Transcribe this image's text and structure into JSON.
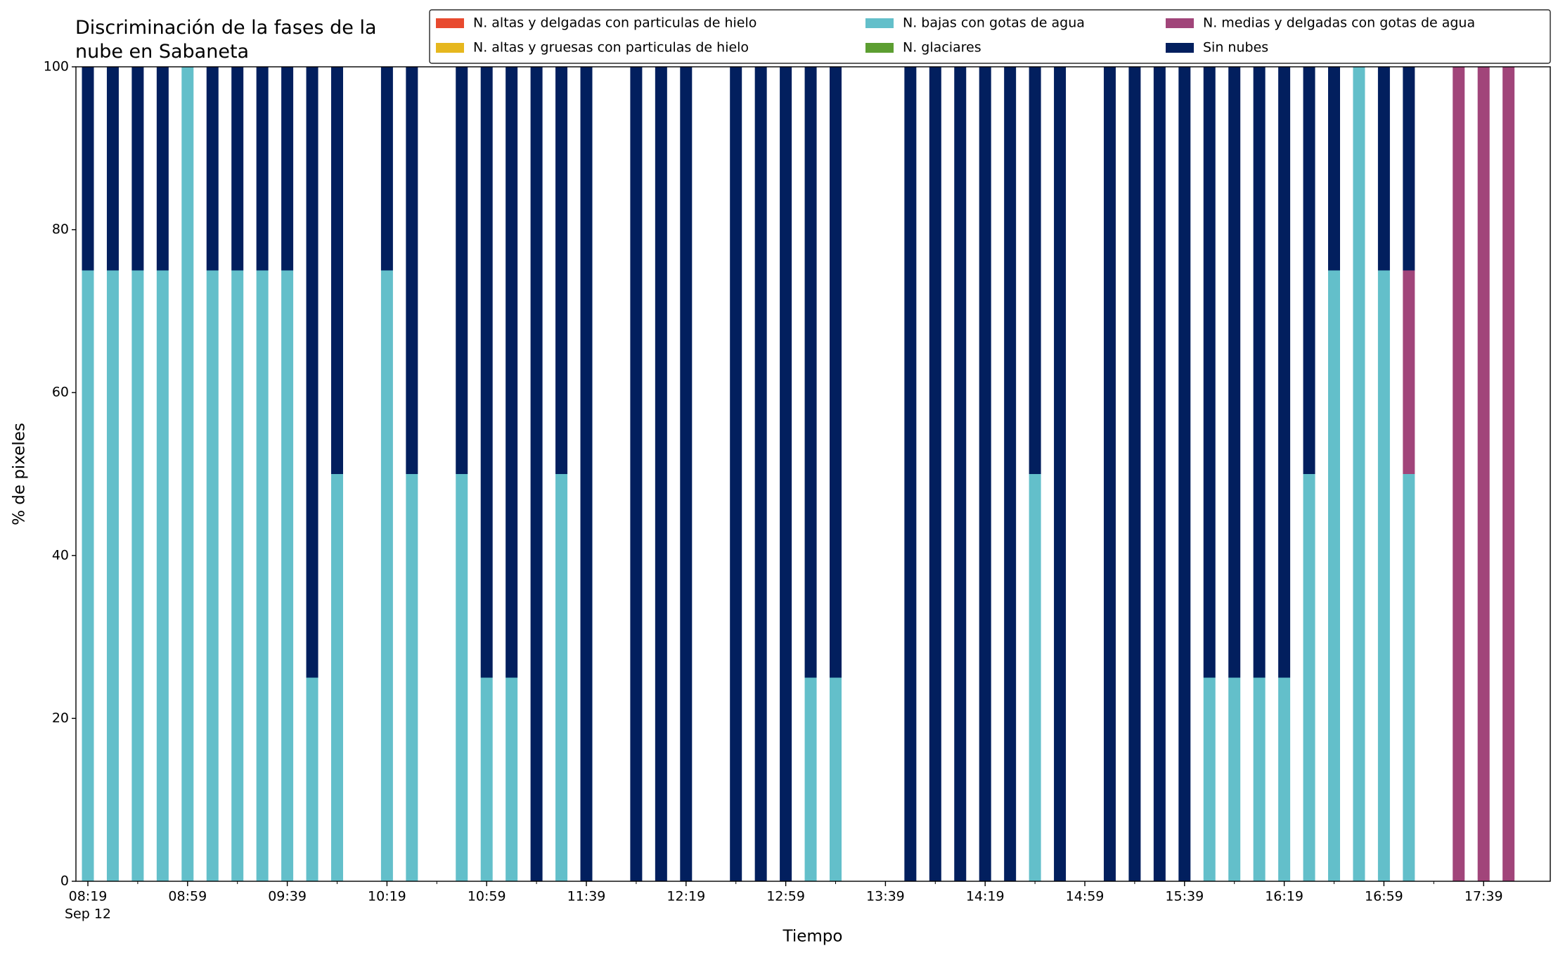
{
  "chart_data": {
    "type": "bar",
    "stacked": true,
    "title": "Discriminación de la fases de la\nnube en Sabaneta",
    "xlabel": "Tiempo",
    "ylabel": "% de pixeles",
    "x_sublabel": "Sep 12",
    "categories": [
      "08:19",
      null,
      null,
      null,
      "08:59",
      null,
      null,
      null,
      "09:39",
      null,
      null,
      null,
      "10:19",
      null,
      null,
      null,
      "10:59",
      null,
      null,
      null,
      "11:39",
      null,
      null,
      null,
      "12:19",
      null,
      null,
      null,
      "12:59",
      null,
      null,
      null,
      "13:39",
      null,
      null,
      null,
      "14:19",
      null,
      null,
      null,
      "14:59",
      null,
      null,
      null,
      "15:39",
      null,
      null,
      null,
      "16:19",
      null,
      null,
      null,
      "16:59",
      null,
      null,
      null,
      "17:39",
      null
    ],
    "series": [
      {
        "name": "N. altas y delgadas con particulas de hielo",
        "color": "#e84a2f",
        "values": [
          0,
          0,
          0,
          0,
          0,
          0,
          0,
          0,
          0,
          0,
          0,
          0,
          0,
          0,
          0,
          0,
          0,
          0,
          0,
          0,
          0,
          0,
          0,
          0,
          0,
          0,
          0,
          0,
          0,
          0,
          0,
          0,
          0,
          0,
          0,
          0,
          0,
          0,
          0,
          0,
          0,
          0,
          0,
          0,
          0,
          0,
          0,
          0,
          0,
          0,
          0,
          0,
          0,
          0,
          0,
          0,
          0,
          0
        ]
      },
      {
        "name": "N. altas y gruesas con particulas de hielo",
        "color": "#e6b71e",
        "values": [
          0,
          0,
          0,
          0,
          0,
          0,
          0,
          0,
          0,
          0,
          0,
          0,
          0,
          0,
          0,
          0,
          0,
          0,
          0,
          0,
          0,
          0,
          0,
          0,
          0,
          0,
          0,
          0,
          0,
          0,
          0,
          0,
          0,
          0,
          0,
          0,
          0,
          0,
          0,
          0,
          0,
          0,
          0,
          0,
          0,
          0,
          0,
          0,
          0,
          0,
          0,
          0,
          0,
          0,
          0,
          0,
          0,
          0
        ]
      },
      {
        "name": "N. bajas con gotas de agua",
        "color": "#63bfca",
        "values": [
          75,
          75,
          75,
          75,
          100,
          75,
          75,
          75,
          75,
          25,
          50,
          0,
          75,
          50,
          0,
          50,
          25,
          25,
          0,
          50,
          0,
          0,
          0,
          0,
          0,
          0,
          0,
          0,
          0,
          25,
          25,
          0,
          0,
          0,
          0,
          0,
          0,
          0,
          50,
          0,
          0,
          0,
          0,
          0,
          0,
          25,
          25,
          25,
          25,
          50,
          75,
          100,
          75,
          50,
          0,
          0,
          0,
          0
        ]
      },
      {
        "name": "N. glaciares",
        "color": "#5c9e31",
        "values": [
          0,
          0,
          0,
          0,
          0,
          0,
          0,
          0,
          0,
          0,
          0,
          0,
          0,
          0,
          0,
          0,
          0,
          0,
          0,
          0,
          0,
          0,
          0,
          0,
          0,
          0,
          0,
          0,
          0,
          0,
          0,
          0,
          0,
          0,
          0,
          0,
          0,
          0,
          0,
          0,
          0,
          0,
          0,
          0,
          0,
          0,
          0,
          0,
          0,
          0,
          0,
          0,
          0,
          0,
          0,
          0,
          0,
          0
        ]
      },
      {
        "name": "N. medias y delgadas con gotas de agua",
        "color": "#a1457a",
        "values": [
          0,
          0,
          0,
          0,
          0,
          0,
          0,
          0,
          0,
          0,
          0,
          0,
          0,
          0,
          0,
          0,
          0,
          0,
          0,
          0,
          0,
          0,
          0,
          0,
          0,
          0,
          0,
          0,
          0,
          0,
          0,
          0,
          0,
          0,
          0,
          0,
          0,
          0,
          0,
          0,
          0,
          0,
          0,
          0,
          0,
          0,
          0,
          0,
          0,
          0,
          0,
          0,
          0,
          25,
          0,
          100,
          100,
          100
        ]
      },
      {
        "name": "Sin nubes",
        "color": "#021f5e",
        "values": [
          25,
          25,
          25,
          25,
          0,
          25,
          25,
          25,
          25,
          75,
          50,
          0,
          25,
          50,
          0,
          50,
          75,
          75,
          100,
          50,
          100,
          0,
          100,
          100,
          100,
          0,
          100,
          100,
          100,
          75,
          75,
          0,
          0,
          100,
          100,
          100,
          100,
          100,
          50,
          100,
          0,
          100,
          100,
          100,
          100,
          75,
          75,
          75,
          75,
          50,
          25,
          0,
          25,
          25,
          0,
          0,
          0,
          0
        ]
      }
    ],
    "ylim": [
      0,
      100
    ],
    "yticks": [
      0,
      20,
      40,
      60,
      80,
      100
    ],
    "legend": "upper right"
  }
}
